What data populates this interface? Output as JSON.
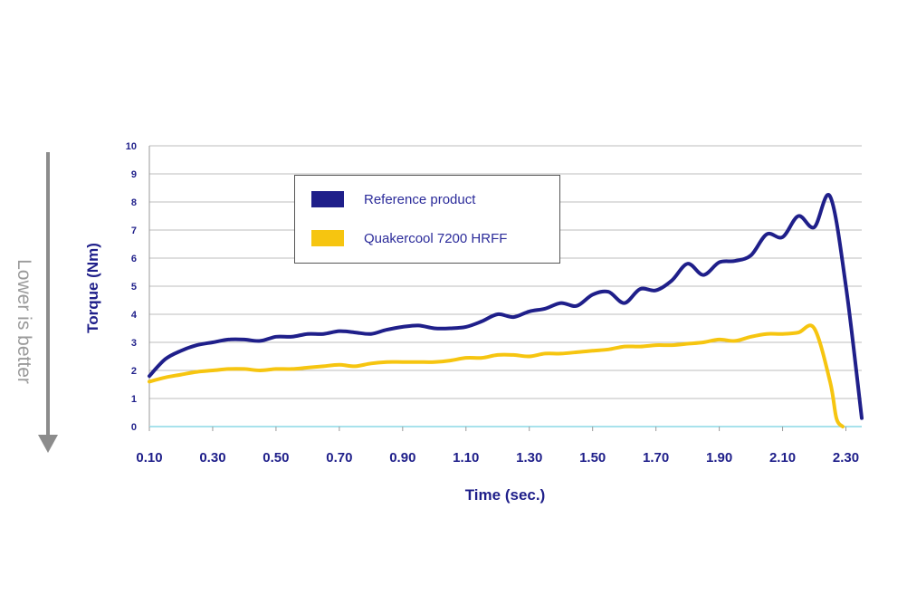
{
  "side_note": "Lower is better",
  "colors": {
    "reference": "#1f1f8a",
    "quaker": "#f6c510",
    "grid": "#bdbdbd",
    "axis_text": "#1f1f8a",
    "baseline": "#a8e2ec",
    "arrow": "#8c8c8c"
  },
  "legend": [
    {
      "label": "Reference product",
      "color": "#1f1f8a"
    },
    {
      "label": "Quakercool 7200 HRFF",
      "color": "#f6c510"
    }
  ],
  "chart_data": {
    "type": "line",
    "title": "",
    "xlabel": "Time (sec.)",
    "ylabel": "Torque (Nm)",
    "xlim": [
      0.1,
      2.35
    ],
    "ylim": [
      0,
      10
    ],
    "grid": true,
    "legend_position": "top-center",
    "xticks": [
      "0.10",
      "0.30",
      "0.50",
      "0.70",
      "0.90",
      "1.10",
      "1.30",
      "1.50",
      "1.70",
      "1.90",
      "2.10",
      "2.30"
    ],
    "yticks": [
      "0",
      "1",
      "2",
      "3",
      "4",
      "5",
      "6",
      "7",
      "8",
      "9",
      "10"
    ],
    "series": [
      {
        "name": "Reference product",
        "x": [
          0.1,
          0.15,
          0.2,
          0.25,
          0.3,
          0.35,
          0.4,
          0.45,
          0.5,
          0.55,
          0.6,
          0.65,
          0.7,
          0.75,
          0.8,
          0.85,
          0.9,
          0.95,
          1.0,
          1.05,
          1.1,
          1.15,
          1.2,
          1.25,
          1.3,
          1.35,
          1.4,
          1.45,
          1.5,
          1.55,
          1.6,
          1.65,
          1.7,
          1.75,
          1.8,
          1.85,
          1.9,
          1.95,
          2.0,
          2.05,
          2.1,
          2.15,
          2.2,
          2.25,
          2.3,
          2.35
        ],
        "y": [
          1.8,
          2.4,
          2.7,
          2.9,
          3.0,
          3.1,
          3.1,
          3.05,
          3.2,
          3.2,
          3.3,
          3.3,
          3.4,
          3.35,
          3.3,
          3.45,
          3.55,
          3.6,
          3.5,
          3.5,
          3.55,
          3.75,
          4.0,
          3.9,
          4.1,
          4.2,
          4.4,
          4.3,
          4.7,
          4.8,
          4.4,
          4.9,
          4.85,
          5.2,
          5.8,
          5.4,
          5.85,
          5.9,
          6.1,
          6.85,
          6.75,
          7.5,
          7.1,
          8.2,
          5.0,
          0.3
        ]
      },
      {
        "name": "Quakercool 7200 HRFF",
        "x": [
          0.1,
          0.15,
          0.2,
          0.25,
          0.3,
          0.35,
          0.4,
          0.45,
          0.5,
          0.55,
          0.6,
          0.65,
          0.7,
          0.75,
          0.8,
          0.85,
          0.9,
          0.95,
          1.0,
          1.05,
          1.1,
          1.15,
          1.2,
          1.25,
          1.3,
          1.35,
          1.4,
          1.45,
          1.5,
          1.55,
          1.6,
          1.65,
          1.7,
          1.75,
          1.8,
          1.85,
          1.9,
          1.95,
          2.0,
          2.05,
          2.1,
          2.15,
          2.2,
          2.25,
          2.27,
          2.29
        ],
        "y": [
          1.6,
          1.75,
          1.85,
          1.95,
          2.0,
          2.05,
          2.05,
          2.0,
          2.05,
          2.05,
          2.1,
          2.15,
          2.2,
          2.15,
          2.25,
          2.3,
          2.3,
          2.3,
          2.3,
          2.35,
          2.45,
          2.45,
          2.55,
          2.55,
          2.5,
          2.6,
          2.6,
          2.65,
          2.7,
          2.75,
          2.85,
          2.85,
          2.9,
          2.9,
          2.95,
          3.0,
          3.1,
          3.05,
          3.2,
          3.3,
          3.3,
          3.35,
          3.5,
          1.6,
          0.3,
          0.0
        ]
      }
    ]
  }
}
